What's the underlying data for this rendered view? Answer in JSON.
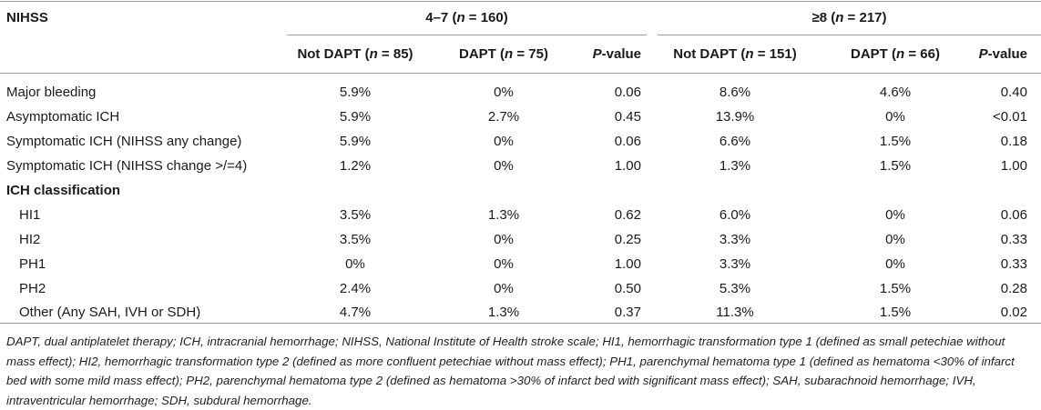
{
  "header": {
    "stub": "NIHSS",
    "group1": {
      "prefix": "4–7 (",
      "n": "n",
      "rest": " = 160)"
    },
    "group2": {
      "prefix": "≥8 (",
      "n": "n",
      "rest": " = 217)"
    },
    "sub": [
      {
        "prefix": "Not DAPT (",
        "n": "n",
        "rest": " = 85)"
      },
      {
        "prefix": "DAPT (",
        "n": "n",
        "rest": " = 75)"
      },
      {
        "p": "P",
        "rest": "-value"
      },
      {
        "prefix": "Not DAPT (",
        "n": "n",
        "rest": " = 151)"
      },
      {
        "prefix": "DAPT (",
        "n": "n",
        "rest": " = 66)"
      },
      {
        "p": "P",
        "rest": "-value"
      }
    ]
  },
  "rows": [
    {
      "label": "Major bleeding",
      "v": [
        "5.9%",
        "0%",
        "0.06",
        "8.6%",
        "4.6%",
        "0.40"
      ]
    },
    {
      "label": "Asymptomatic ICH",
      "v": [
        "5.9%",
        "2.7%",
        "0.45",
        "13.9%",
        "0%",
        "<0.01"
      ]
    },
    {
      "label": "Symptomatic ICH (NIHSS any change)",
      "v": [
        "5.9%",
        "0%",
        "0.06",
        "6.6%",
        "1.5%",
        "0.18"
      ]
    },
    {
      "label": "Symptomatic ICH (NIHSS change >/=4)",
      "v": [
        "1.2%",
        "0%",
        "1.00",
        "1.3%",
        "1.5%",
        "1.00"
      ]
    }
  ],
  "section": "ICH classification",
  "subrows": [
    {
      "label": "HI1",
      "v": [
        "3.5%",
        "1.3%",
        "0.62",
        "6.0%",
        "0%",
        "0.06"
      ]
    },
    {
      "label": "HI2",
      "v": [
        "3.5%",
        "0%",
        "0.25",
        "3.3%",
        "0%",
        "0.33"
      ]
    },
    {
      "label": "PH1",
      "v": [
        "0%",
        "0%",
        "1.00",
        "3.3%",
        "0%",
        "0.33"
      ]
    },
    {
      "label": "PH2",
      "v": [
        "2.4%",
        "0%",
        "0.50",
        "5.3%",
        "1.5%",
        "0.28"
      ]
    },
    {
      "label": "Other (Any SAH, IVH or SDH)",
      "v": [
        "4.7%",
        "1.3%",
        "0.37",
        "11.3%",
        "1.5%",
        "0.02"
      ]
    }
  ],
  "footnote": "DAPT, dual antiplatelet therapy; ICH, intracranial hemorrhage; NIHSS, National Institute of Health stroke scale; HI1, hemorrhagic transformation type 1 (defined as small petechiae without mass effect); HI2, hemorrhagic transformation type 2 (defined as more confluent petechiae without mass effect); PH1, parenchymal hematoma type 1 (defined as hematoma <30% of infarct bed with some mild mass effect); PH2, parenchymal hematoma type 2 (defined as hematoma >30% of infarct bed with significant mass effect); SAH, subarachnoid hemorrhage; IVH, intraventricular hemorrhage; SDH, subdural hemorrhage."
}
